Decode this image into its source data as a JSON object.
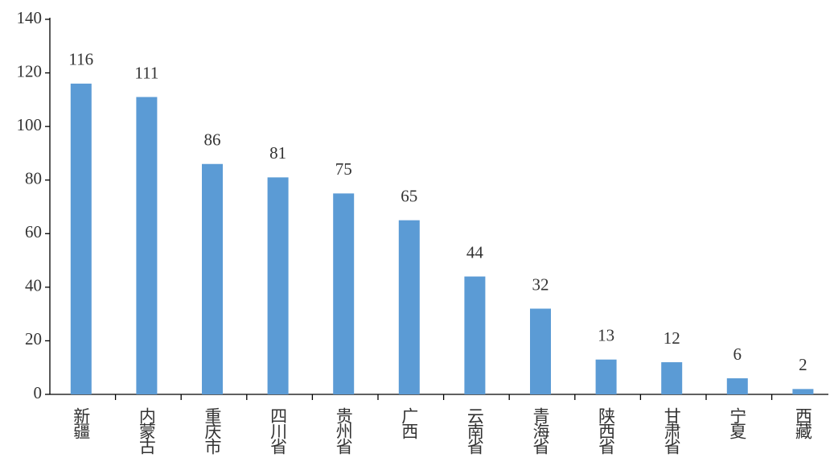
{
  "chart_data": {
    "type": "bar",
    "categories": [
      "新疆",
      "内蒙古",
      "重庆市",
      "四川省",
      "贵州省",
      "广西",
      "云南省",
      "青海省",
      "陕西省",
      "甘肃省",
      "宁夏",
      "西藏"
    ],
    "values": [
      116,
      111,
      86,
      81,
      75,
      65,
      44,
      32,
      13,
      12,
      6,
      2
    ],
    "color": "#5b9bd5",
    "ylim": [
      0,
      140
    ],
    "yticks": [
      0,
      20,
      40,
      60,
      80,
      100,
      120,
      140
    ],
    "grid": false
  }
}
